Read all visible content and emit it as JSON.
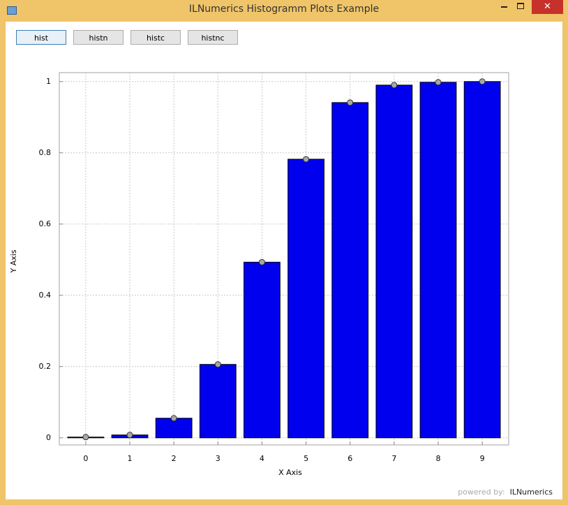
{
  "window": {
    "title": "ILNumerics Histogramm Plots Example"
  },
  "buttons": [
    "hist",
    "histn",
    "histc",
    "histnc"
  ],
  "chart_data": {
    "type": "bar",
    "xlabel": "X Axis",
    "ylabel": "Y Axis",
    "x": [
      0,
      1,
      2,
      3,
      4,
      5,
      6,
      7,
      8,
      9
    ],
    "values": [
      0.002,
      0.008,
      0.055,
      0.206,
      0.493,
      0.782,
      0.941,
      0.99,
      0.998,
      1.0
    ],
    "color": "#0000ee",
    "marker_color": "#a8a8a8",
    "xlim": [
      -0.6,
      9.6
    ],
    "ylim": [
      -0.02,
      1.025
    ],
    "xticks": [
      0,
      1,
      2,
      3,
      4,
      5,
      6,
      7,
      8,
      9
    ],
    "yticks": [
      0,
      0.2,
      0.4,
      0.6,
      0.8,
      1
    ],
    "grid": true
  },
  "footer": {
    "prefix": "powered by:",
    "brand": "ILNumerics"
  }
}
